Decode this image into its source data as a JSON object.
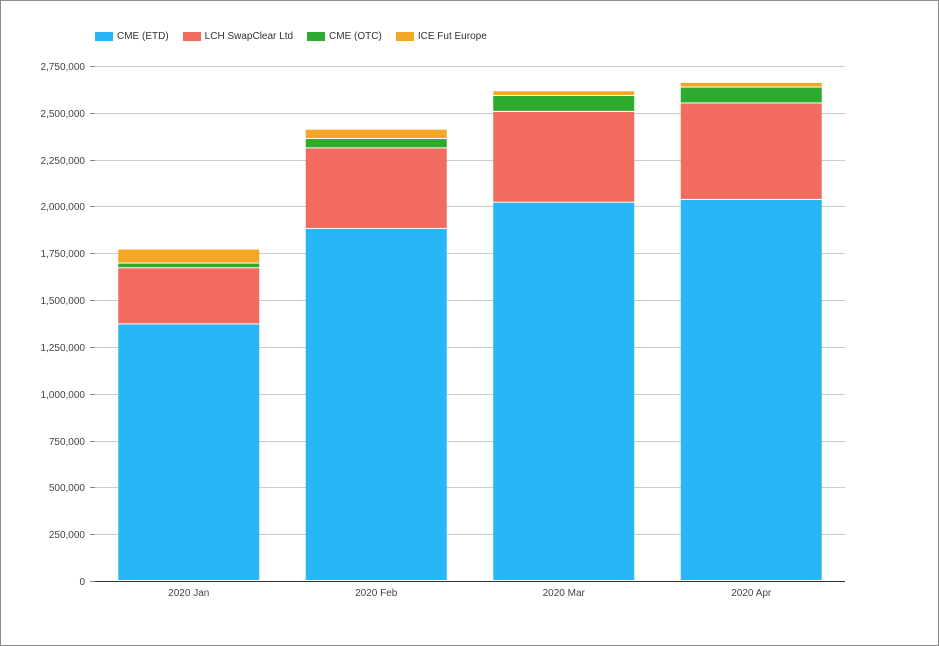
{
  "chart_data": {
    "type": "bar",
    "stacked": true,
    "categories": [
      "2020 Jan",
      "2020 Feb",
      "2020 Mar",
      "2020 Apr"
    ],
    "series": [
      {
        "name": "CME (ETD)",
        "color": "#29b6f6",
        "values": [
          1370000,
          1880000,
          2020000,
          2035000
        ]
      },
      {
        "name": "LCH SwapClear Ltd",
        "color": "#f26b5f",
        "values": [
          300000,
          430000,
          485000,
          515000
        ]
      },
      {
        "name": "CME (OTC)",
        "color": "#2eaa2e",
        "values": [
          25000,
          50000,
          85000,
          85000
        ]
      },
      {
        "name": "ICE Fut Europe",
        "color": "#f5a623",
        "values": [
          75000,
          50000,
          25000,
          25000
        ]
      }
    ],
    "yticks": [
      0,
      250000,
      500000,
      750000,
      1000000,
      1250000,
      1500000,
      1750000,
      2000000,
      2250000,
      2500000,
      2750000
    ],
    "ytick_labels": [
      "0",
      "250,000",
      "500,000",
      "750,000",
      "1,000,000",
      "1,250,000",
      "1,500,000",
      "1,750,000",
      "2,000,000",
      "2,250,000",
      "2,500,000",
      "2,750,000"
    ],
    "ylim": [
      0,
      2750000
    ],
    "grid": true,
    "legend_position": "top-left"
  }
}
